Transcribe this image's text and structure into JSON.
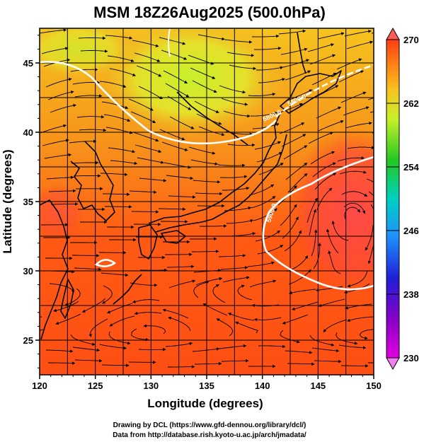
{
  "title": "MSM 18Z26Aug2025 (500.0hPa)",
  "xlabel": "Longitude (degrees)",
  "ylabel": "Latitude  (degrees)",
  "x_ticks": [
    "120",
    "125",
    "130",
    "135",
    "140",
    "145",
    "150"
  ],
  "y_ticks": [
    "25",
    "30",
    "35",
    "40",
    "45"
  ],
  "colorbar": {
    "ticks": [
      "270",
      "262",
      "254",
      "246",
      "238",
      "230"
    ],
    "range": [
      230,
      270
    ]
  },
  "contour_labels": [
    "5800.0",
    "5800.0",
    "5900.0"
  ],
  "footer": {
    "line1": "Drawing by DCL (https://www.gfd-dennou.org/library/dcl/)",
    "line2": "Data from http://database.rish.kyoto-u.ac.jp/arch/jmadata/"
  },
  "colors": {
    "field_warm": "#ff4f14",
    "field_mid": "#f6a11f",
    "field_cold": "#c8f02a",
    "contour": "#ffffff",
    "streamline": "#000000",
    "coastline": "#000000"
  },
  "map": {
    "lon_range": [
      120,
      150
    ],
    "lat_range": [
      22.5,
      47.5
    ],
    "contour_levels": [
      "5800.0",
      "5900.0"
    ]
  }
}
